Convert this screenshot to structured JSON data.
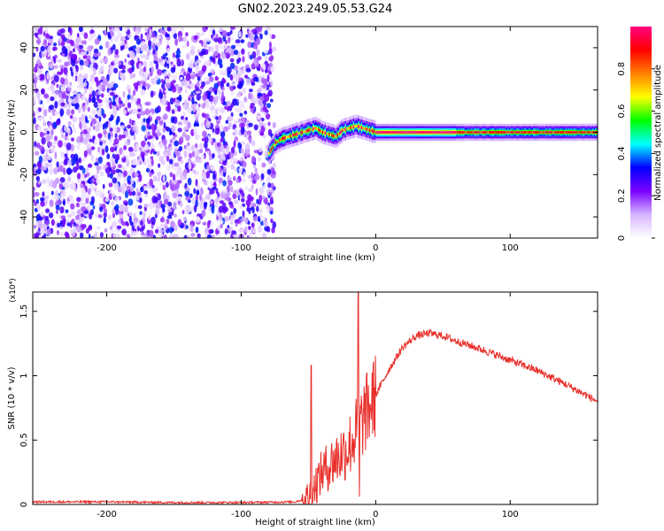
{
  "title": "GN02.2023.249.05.53.G24",
  "chart_data": [
    {
      "type": "heatmap",
      "xlabel": "Height of straight line (km)",
      "ylabel": "Frequency (Hz)",
      "xlim": [
        -255,
        165
      ],
      "ylim": [
        -50,
        50
      ],
      "xticks": [
        -200,
        -100,
        0,
        100
      ],
      "yticks": [
        -40,
        -20,
        0,
        20,
        40
      ],
      "noise_region": {
        "x_from": -255,
        "x_to": -78,
        "note_amplitude": "scattered 0.0-0.3"
      },
      "ridge": {
        "x": [
          -80,
          -75,
          -70,
          -65,
          -60,
          -55,
          -50,
          -45,
          -40,
          -35,
          -30,
          -25,
          -20,
          -15,
          -10,
          -5,
          0,
          20,
          40,
          60,
          80,
          100,
          120,
          140,
          165
        ],
        "y": [
          -10,
          -5,
          -3,
          -2,
          -1,
          0,
          1,
          2,
          0,
          -1,
          -2,
          1,
          2,
          3,
          2,
          1,
          0,
          0,
          0,
          0,
          0,
          0,
          0,
          0,
          0
        ]
      },
      "colorbar": {
        "label": "Normalized spectral amplitude",
        "range": [
          0,
          1
        ],
        "ticks": [
          0.0,
          0.2,
          0.4,
          0.6,
          0.8
        ],
        "colormap": [
          "#ffffff",
          "#d6b6ff",
          "#7b00ff",
          "#0000ff",
          "#00ffff",
          "#00ff00",
          "#ffff00",
          "#ff8000",
          "#ff0000",
          "#ff0080"
        ]
      }
    },
    {
      "type": "line",
      "xlabel": "Height of straight line (km)",
      "ylabel": "SNR (10 * v/v)",
      "yscale_note": "(x10⁴)",
      "xlim": [
        -255,
        165
      ],
      "ylim": [
        0,
        1.65
      ],
      "xticks": [
        -200,
        -100,
        0,
        100
      ],
      "yticks": [
        0.0,
        0.5,
        1.0,
        1.5
      ],
      "series": [
        {
          "color": "#e8302b",
          "x": [
            -255,
            -200,
            -150,
            -100,
            -60,
            -50,
            -45,
            -40,
            -30,
            -20,
            -15,
            -10,
            -5,
            0,
            10,
            20,
            30,
            40,
            50,
            60,
            80,
            100,
            120,
            140,
            165
          ],
          "values": [
            0.02,
            0.02,
            0.015,
            0.015,
            0.02,
            0.05,
            0.15,
            0.25,
            0.35,
            0.45,
            0.55,
            0.65,
            0.75,
            0.85,
            1.05,
            1.22,
            1.31,
            1.33,
            1.31,
            1.27,
            1.2,
            1.12,
            1.04,
            0.94,
            0.8
          ]
        }
      ],
      "spikes": [
        {
          "x": -48,
          "y": 1.08
        },
        {
          "x": -13,
          "y": 1.65
        },
        {
          "x": -12,
          "y": 0.06
        }
      ]
    }
  ]
}
